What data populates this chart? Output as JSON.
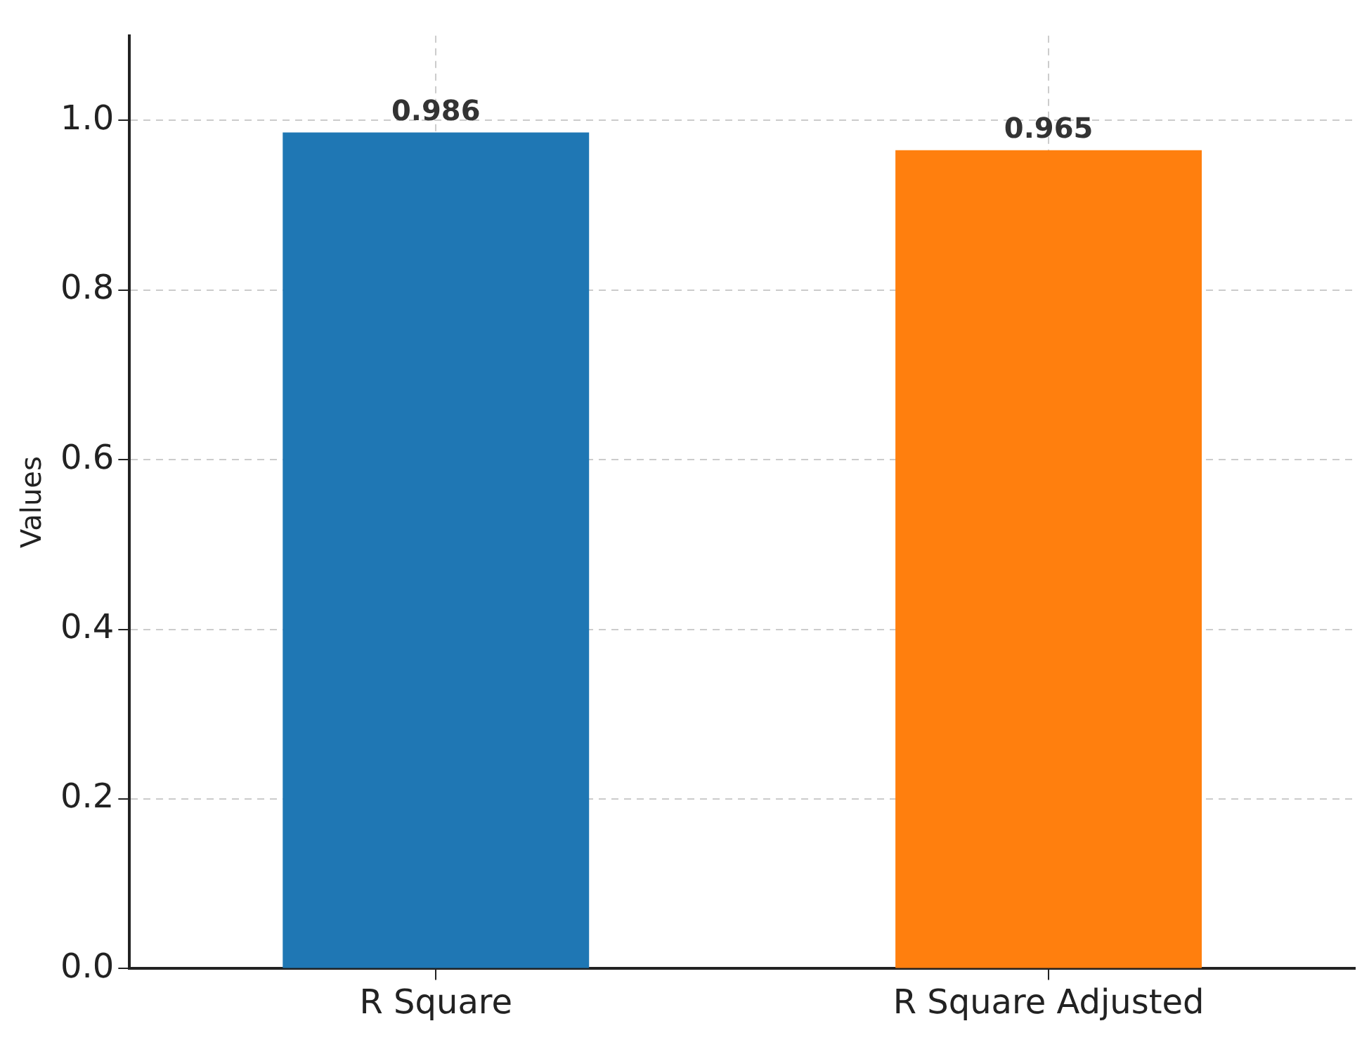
{
  "chart_data": {
    "type": "bar",
    "ylabel": "Values",
    "categories": [
      "R Square",
      "R Square Adjusted"
    ],
    "values": [
      0.986,
      0.965
    ],
    "colors": [
      "#1f77b4",
      "#ff7f0e"
    ],
    "ylim": [
      0,
      1.1
    ],
    "yticks": [
      {
        "value": 0,
        "label": "0.0"
      },
      {
        "value": 0.2,
        "label": "0.2"
      },
      {
        "value": 0.4,
        "label": "0.4"
      },
      {
        "value": 0.6,
        "label": "0.6"
      },
      {
        "value": 0.8,
        "label": "0.8"
      },
      {
        "value": 1,
        "label": "1.0"
      }
    ],
    "grid": true,
    "data_labels": true
  }
}
